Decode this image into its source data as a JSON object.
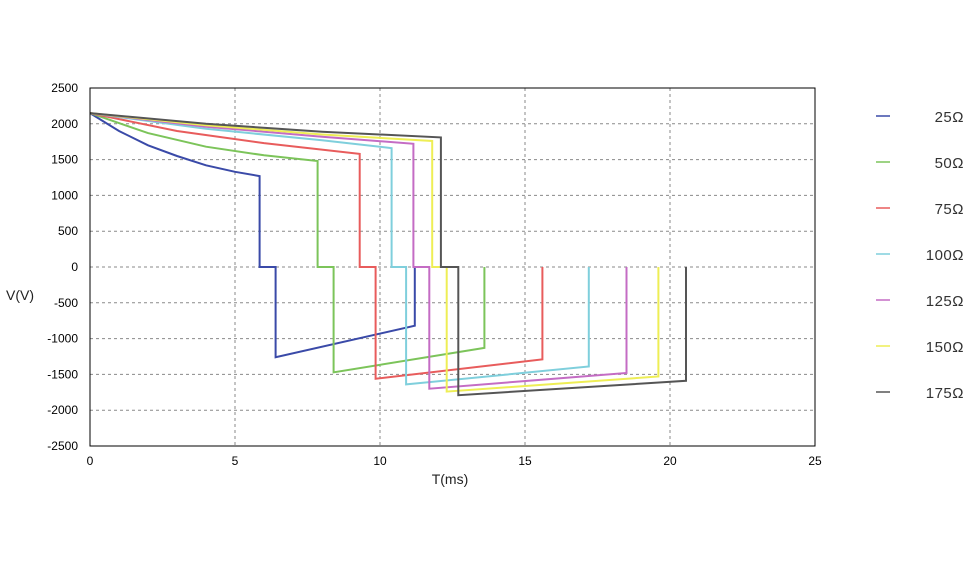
{
  "chart_data": {
    "type": "line",
    "title": "",
    "xlabel": "T(ms)",
    "ylabel": "V(V)",
    "xlim": [
      0,
      25
    ],
    "ylim": [
      -2500,
      2500
    ],
    "xticks": [
      0,
      5,
      10,
      15,
      20,
      25
    ],
    "yticks": [
      2500,
      2000,
      1500,
      1000,
      500,
      0,
      -500,
      -1000,
      -1500,
      -2000,
      -2500
    ],
    "grid": true,
    "grid_style": "dashed",
    "legend_position": "right",
    "series": [
      {
        "name": "25Ω",
        "color": "#3a4aa8",
        "points": [
          [
            0,
            2150
          ],
          [
            1,
            1900
          ],
          [
            2,
            1700
          ],
          [
            3,
            1550
          ],
          [
            4,
            1420
          ],
          [
            5,
            1330
          ],
          [
            5.85,
            1270
          ],
          [
            5.85,
            0
          ],
          [
            6.4,
            0
          ],
          [
            6.4,
            -1260
          ],
          [
            11.2,
            -820
          ],
          [
            11.2,
            0
          ]
        ]
      },
      {
        "name": "50Ω",
        "color": "#7cc45a",
        "points": [
          [
            0,
            2150
          ],
          [
            2,
            1870
          ],
          [
            4,
            1680
          ],
          [
            6,
            1560
          ],
          [
            7.85,
            1480
          ],
          [
            7.85,
            0
          ],
          [
            8.4,
            0
          ],
          [
            8.4,
            -1470
          ],
          [
            13.6,
            -1130
          ],
          [
            13.6,
            0
          ]
        ]
      },
      {
        "name": "75Ω",
        "color": "#e85c5c",
        "points": [
          [
            0,
            2150
          ],
          [
            3,
            1900
          ],
          [
            6,
            1730
          ],
          [
            9.3,
            1580
          ],
          [
            9.3,
            0
          ],
          [
            9.85,
            0
          ],
          [
            9.85,
            -1560
          ],
          [
            15.6,
            -1290
          ],
          [
            15.6,
            0
          ]
        ]
      },
      {
        "name": "100Ω",
        "color": "#7fcfdc",
        "points": [
          [
            0,
            2150
          ],
          [
            4,
            1930
          ],
          [
            8,
            1770
          ],
          [
            10.4,
            1660
          ],
          [
            10.4,
            0
          ],
          [
            10.9,
            0
          ],
          [
            10.9,
            -1640
          ],
          [
            17.2,
            -1390
          ],
          [
            17.2,
            0
          ]
        ]
      },
      {
        "name": "125Ω",
        "color": "#c46cc4",
        "points": [
          [
            0,
            2150
          ],
          [
            4,
            1960
          ],
          [
            8,
            1820
          ],
          [
            11.15,
            1720
          ],
          [
            11.15,
            0
          ],
          [
            11.7,
            0
          ],
          [
            11.7,
            -1700
          ],
          [
            18.5,
            -1480
          ],
          [
            18.5,
            0
          ]
        ]
      },
      {
        "name": "150Ω",
        "color": "#eeee55",
        "points": [
          [
            0,
            2150
          ],
          [
            4,
            1980
          ],
          [
            8,
            1850
          ],
          [
            11.8,
            1760
          ],
          [
            11.8,
            0
          ],
          [
            12.3,
            0
          ],
          [
            12.3,
            -1740
          ],
          [
            19.6,
            -1530
          ],
          [
            19.6,
            0
          ]
        ]
      },
      {
        "name": "175Ω",
        "color": "#555555",
        "points": [
          [
            0,
            2150
          ],
          [
            4,
            2000
          ],
          [
            8,
            1890
          ],
          [
            12.1,
            1810
          ],
          [
            12.1,
            0
          ],
          [
            12.7,
            0
          ],
          [
            12.7,
            -1790
          ],
          [
            20.55,
            -1590
          ],
          [
            20.55,
            0
          ]
        ]
      }
    ]
  }
}
